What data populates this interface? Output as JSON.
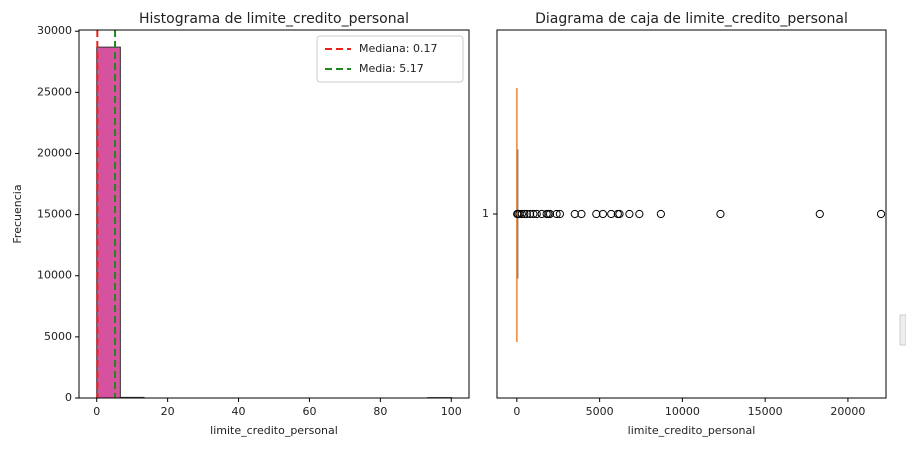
{
  "chart_data": [
    {
      "type": "histogram",
      "title": "Histograma de limite_credito_personal",
      "xlabel": "limite_credito_personal",
      "ylabel": "Frecuencia",
      "bins": [
        0,
        6.67,
        13.33,
        20,
        26.67,
        33.33,
        40,
        46.67,
        53.33,
        60,
        66.67,
        73.33,
        80,
        86.67,
        93.33,
        100
      ],
      "counts": [
        28700,
        50,
        0,
        0,
        0,
        0,
        0,
        0,
        0,
        0,
        0,
        0,
        0,
        0,
        30
      ],
      "color": "#d6529f",
      "xlim": [
        -5,
        105
      ],
      "xticks": [
        0,
        20,
        40,
        60,
        80,
        100
      ],
      "ylim": [
        0,
        30100
      ],
      "yticks": [
        0,
        5000,
        10000,
        15000,
        20000,
        25000,
        30000
      ],
      "lines": [
        {
          "name": "Mediana: 0.17",
          "value": 0.17,
          "color": "#e8231c"
        },
        {
          "name": "Media: 5.17",
          "value": 5.17,
          "color": "#1e8a1e"
        }
      ],
      "legend": "upper right"
    },
    {
      "type": "box",
      "title": "Diagrama de caja de limite_credito_personal",
      "xlabel": "limite_credito_personal",
      "categories": [
        "1"
      ],
      "color": "#e8883a",
      "box": {
        "whislo": 0,
        "q1": 0,
        "med": 0.17,
        "q3": 1.2,
        "whishi": 2.9,
        "fliers": [
          20,
          60,
          150,
          300,
          450,
          600,
          800,
          1000,
          1200,
          1500,
          1800,
          1900,
          2000,
          2400,
          2600,
          3500,
          3900,
          4800,
          5200,
          5700,
          6100,
          6200,
          6800,
          7400,
          8700,
          12300,
          18300,
          22000
        ]
      },
      "xlim": [
        -1200,
        22300
      ],
      "xticks": [
        0,
        5000,
        10000,
        15000,
        20000
      ]
    }
  ]
}
